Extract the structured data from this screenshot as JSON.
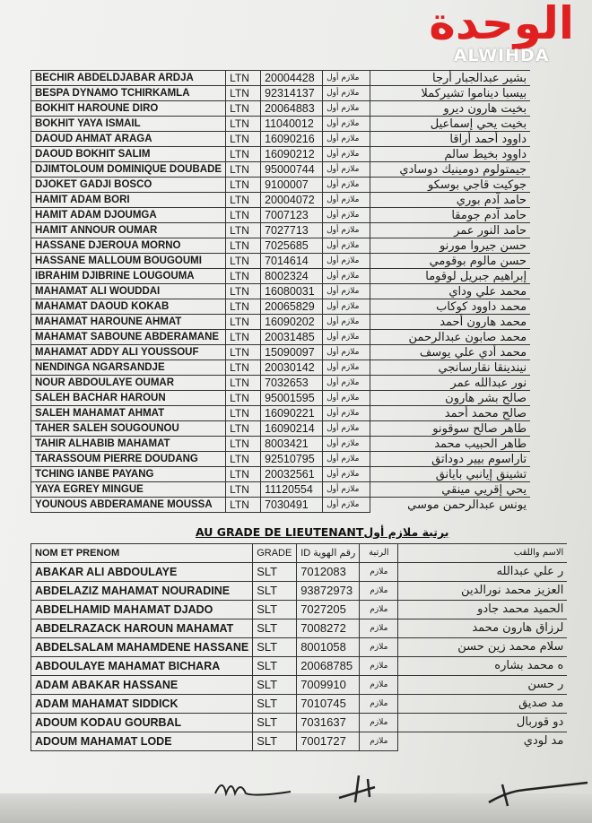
{
  "watermark": {
    "arabic": "الوحدة",
    "latin": "ALWIHDA",
    "color": "#e02020"
  },
  "table1": {
    "rows": [
      [
        "BECHIR ABDELDJABAR ARDJA",
        "LTN",
        "20004428",
        "ملازم أول",
        "بشير عبدالجبار أرجا"
      ],
      [
        "BESPA DYNAMO TCHIRKAMLA",
        "LTN",
        "92314137",
        "ملازم أول",
        "بيسبا ديناموا تشيركملا"
      ],
      [
        "BOKHIT HAROUNE DIRO",
        "LTN",
        "20064883",
        "ملازم أول",
        "بخيت هارون ديرو"
      ],
      [
        "BOKHIT YAYA ISMAIL",
        "LTN",
        "11040012",
        "ملازم أول",
        "بخيت يحي إسماعيل"
      ],
      [
        "DAOUD AHMAT ARAGA",
        "LTN",
        "16090216",
        "ملازم أول",
        "داوود أحمد أراقا"
      ],
      [
        "DAOUD BOKHIT SALIM",
        "LTN",
        "16090212",
        "ملازم أول",
        "داوود بخيط سالم"
      ],
      [
        "DJIMTOLOUM DOMINIQUE DOUBADE",
        "LTN",
        "95000744",
        "ملازم أول",
        "جيمتولوم دومينيك دوسادي"
      ],
      [
        "DJOKET GADJI BOSCO",
        "LTN",
        "9100007",
        "ملازم أول",
        "جوكيت قاجي بوسكو"
      ],
      [
        "HAMIT ADAM BORI",
        "LTN",
        "20004072",
        "ملازم أول",
        "حامد آدم بوري"
      ],
      [
        "HAMIT ADAM DJOUMGA",
        "LTN",
        "7007123",
        "ملازم أول",
        "حامد آدم جومقا"
      ],
      [
        "HAMIT ANNOUR OUMAR",
        "LTN",
        "7027713",
        "ملازم أول",
        "حامد النور عمر"
      ],
      [
        "HASSANE DJEROUA MORNO",
        "LTN",
        "7025685",
        "ملازم أول",
        "حسن جيروا مورنو"
      ],
      [
        "HASSANE MALLOUM BOUGOUMI",
        "LTN",
        "7014614",
        "ملازم أول",
        "حسن مالوم بوقومي"
      ],
      [
        "IBRAHIM DJIBRINE LOUGOUMA",
        "LTN",
        "8002324",
        "ملازم أول",
        "إبراهيم جبريل لوقوما"
      ],
      [
        "MAHAMAT ALI WOUDDAI",
        "LTN",
        "16080031",
        "ملازم أول",
        "محمد علي وداي"
      ],
      [
        "MAHAMAT DAOUD KOKAB",
        "LTN",
        "20065829",
        "ملازم أول",
        "محمد داوود كوكاب"
      ],
      [
        "MAHAMAT HAROUNE AHMAT",
        "LTN",
        "16090202",
        "ملازم أول",
        "محمد هارون أحمد"
      ],
      [
        "MAHAMAT SABOUNE ABDERAMANE",
        "LTN",
        "20031485",
        "ملازم أول",
        "محمد صابون عبدالرحمن"
      ],
      [
        "MAHAMAT ADDY ALI YOUSSOUF",
        "LTN",
        "15090097",
        "ملازم أول",
        "محمد أدي علي يوسف"
      ],
      [
        "NENDINGA NGARSANDJE",
        "LTN",
        "20030142",
        "ملازم أول",
        "نيندينقا نقارسانجي"
      ],
      [
        "NOUR ABDOULAYE OUMAR",
        "LTN",
        "7032653",
        "ملازم أول",
        "نور عبدالله عمر"
      ],
      [
        "SALEH BACHAR HAROUN",
        "LTN",
        "95001595",
        "ملازم أول",
        "صالح بشر هارون"
      ],
      [
        "SALEH MAHAMAT AHMAT",
        "LTN",
        "16090221",
        "ملازم أول",
        "صالح محمد أحمد"
      ],
      [
        "TAHER SALEH SOUGOUNOU",
        "LTN",
        "16090214",
        "ملازم أول",
        "طاهر صالح سوقونو"
      ],
      [
        "TAHIR ALHABIB MAHAMAT",
        "LTN",
        "8003421",
        "ملازم أول",
        "طاهر الحبيب محمد"
      ],
      [
        "TARASSOUM PIERRE DOUDANG",
        "LTN",
        "92510795",
        "ملازم أول",
        "تاراسوم بيير دوداتق"
      ],
      [
        "TCHING IANBE PAYANG",
        "LTN",
        "20032561",
        "ملازم أول",
        "تشينق إيانبي بايانق"
      ],
      [
        "YAYA EGREY MINGUE",
        "LTN",
        "11120554",
        "ملازم أول",
        "يحي إقريي مينقي"
      ],
      [
        "YOUNOUS ABDERAMANE MOUSSA",
        "LTN",
        "7030491",
        "ملازم أول",
        "يونس عبدالرحمن موسي"
      ]
    ]
  },
  "section_title": "AU GRADE DE LIEUTENANTبرتبة ملازم أول",
  "table2": {
    "headers": [
      "NOM ET PRENOM",
      "GRADE",
      "ID رقم الهوية",
      "الرتبة",
      "الاسم واللقب"
    ],
    "rows": [
      [
        "ABAKAR ALI ABDOULAYE",
        "SLT",
        "7012083",
        "ملازم",
        "ر علي عبدالله"
      ],
      [
        "ABDELAZIZ MAHAMAT NOURADINE",
        "SLT",
        "93872973",
        "ملازم",
        "العزيز محمد نورالدين"
      ],
      [
        "ABDELHAMID MAHAMAT DJADO",
        "SLT",
        "7027205",
        "ملازم",
        "الحميد محمد جادو"
      ],
      [
        "ABDELRAZACK HAROUN MAHAMAT",
        "SLT",
        "7008272",
        "ملازم",
        "لرزاق هارون محمد"
      ],
      [
        "ABDELSALAM MAHAMDENE HASSANE",
        "SLT",
        "8001058",
        "ملازم",
        "سلام محمد زين حسن"
      ],
      [
        "ABDOULAYE MAHAMAT BICHARA",
        "SLT",
        "20068785",
        "ملازم",
        "ه محمد بشاره"
      ],
      [
        "ADAM ABAKAR HASSANE",
        "SLT",
        "7009910",
        "ملازم",
        "ر حسن"
      ],
      [
        "ADAM MAHAMAT SIDDICK",
        "SLT",
        "7010745",
        "ملازم",
        "مد صديق"
      ],
      [
        "ADOUM KODAU GOURBAL",
        "SLT",
        "7031637",
        "ملازم",
        "دو قوربال"
      ],
      [
        "ADOUM MAHAMAT LODE",
        "SLT",
        "7001727",
        "ملازم",
        "مد لودي"
      ]
    ]
  }
}
